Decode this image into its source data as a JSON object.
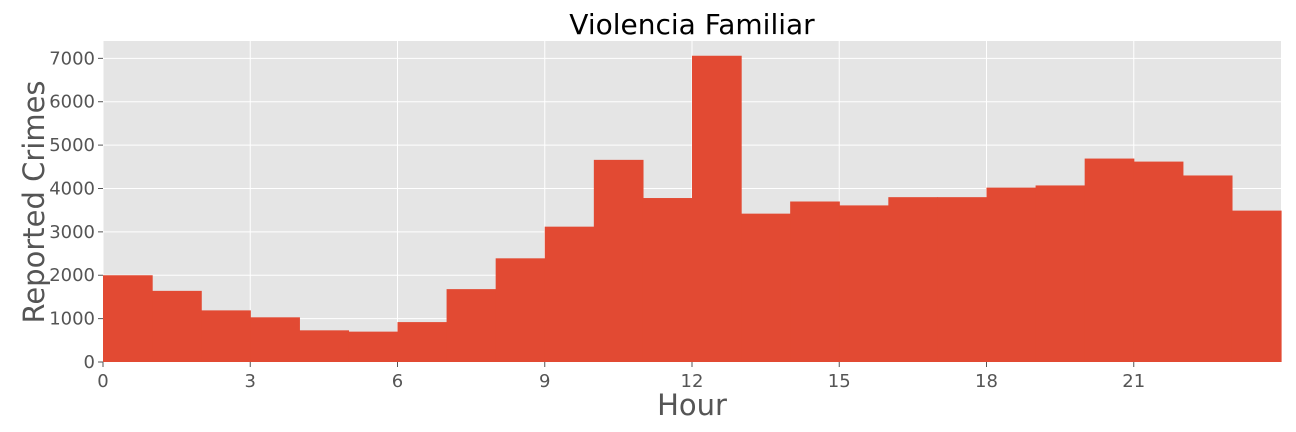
{
  "chart_data": {
    "type": "bar",
    "title": "Violencia Familiar",
    "xlabel": "Hour",
    "ylabel": "Reported Crimes",
    "x": [
      0,
      1,
      2,
      3,
      4,
      5,
      6,
      7,
      8,
      9,
      10,
      11,
      12,
      13,
      14,
      15,
      16,
      17,
      18,
      19,
      20,
      21,
      22,
      23
    ],
    "values": [
      2000,
      1640,
      1190,
      1030,
      730,
      700,
      920,
      1680,
      2390,
      3120,
      4660,
      3780,
      7060,
      3420,
      3700,
      3610,
      3800,
      3800,
      4020,
      4070,
      4690,
      4620,
      4300,
      3490
    ],
    "xlim": [
      0,
      24
    ],
    "ylim": [
      0,
      7400
    ],
    "xticks": [
      0,
      3,
      6,
      9,
      12,
      15,
      18,
      21
    ],
    "yticks": [
      0,
      1000,
      2000,
      3000,
      4000,
      5000,
      6000,
      7000
    ],
    "grid": true,
    "bar_color": "#E24A33",
    "plot_background": "#E5E5E5"
  }
}
